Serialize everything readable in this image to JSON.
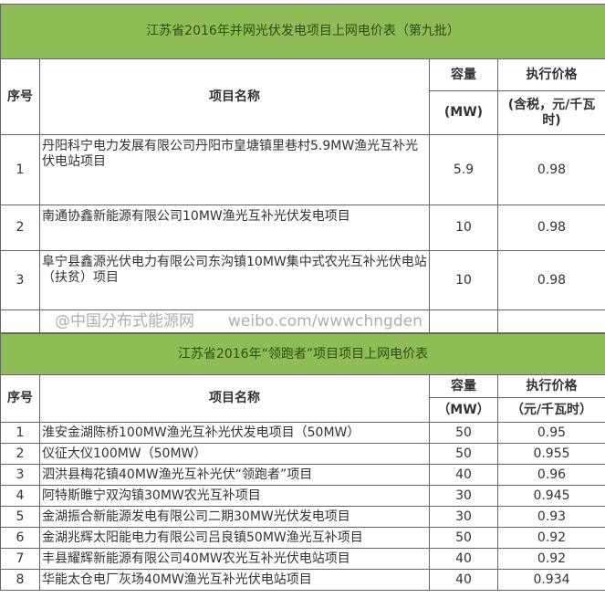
{
  "table1": {
    "title": "江苏省2016年并网光伏发电项目上网电价表（第九批）",
    "headers": {
      "no": "序号",
      "name": "项目名称",
      "cap": "容量",
      "cap_unit": "(MW)",
      "price": "执行价格",
      "price_unit": "(含税，元/千瓦时)"
    },
    "rows": [
      {
        "no": "1",
        "name": "丹阳科宁电力发展有限公司丹阳市皇塘镇里巷村5.9MW渔光互补光伏电站项目",
        "cap": "5.9",
        "price": "0.98"
      },
      {
        "no": "2",
        "name": "南通协鑫新能源有限公司10MW渔光互补光伏发电项目",
        "cap": "10",
        "price": "0.98"
      },
      {
        "no": "3",
        "name": "阜宁县鑫源光伏电力有限公司东沟镇10MW集中式农光互补光伏电站（扶贫）项目",
        "cap": "10",
        "price": "0.98"
      }
    ]
  },
  "table2": {
    "title": "江苏省2016年“领跑者”项目项目上网电价表",
    "headers": {
      "no": "序号",
      "name": "项目名称",
      "cap": "容量",
      "cap_unit": "（MW）",
      "price": "执行价格",
      "price_unit": "（元/千瓦时）"
    },
    "rows": [
      {
        "no": "1",
        "name": "淮安金湖陈桥100MW渔光互补光伏发电项目（50MW）",
        "cap": "50",
        "price": "0.95"
      },
      {
        "no": "2",
        "name": "仪征大仪100MW（50MW）",
        "cap": "50",
        "price": "0.955"
      },
      {
        "no": "3",
        "name": "泗洪县梅花镇40MW渔光互补光伏“领跑者”项目",
        "cap": "40",
        "price": "0.96"
      },
      {
        "no": "4",
        "name": "阿特斯睢宁双沟镇30MW农光互补项目",
        "cap": "30",
        "price": "0.945"
      },
      {
        "no": "5",
        "name": "金湖振合新能源发电有限公司二期30MW光伏发电项目",
        "cap": "30",
        "price": "0.93"
      },
      {
        "no": "6",
        "name": "金湖兆辉太阳能电力有限公司吕良镇50MW渔光互补项目",
        "cap": "50",
        "price": "0.92"
      },
      {
        "no": "7",
        "name": "丰县耀辉新能源有限公司40MW农光互补光伏电站项目",
        "cap": "40",
        "price": "0.92"
      },
      {
        "no": "8",
        "name": "华能太仓电厂灰场40MW渔光互补光伏电站项目",
        "cap": "40",
        "price": "0.934"
      }
    ]
  },
  "watermark": {
    "line1": "@中国分布式能源网",
    "line2": "weibo.com/wwwchngden"
  }
}
